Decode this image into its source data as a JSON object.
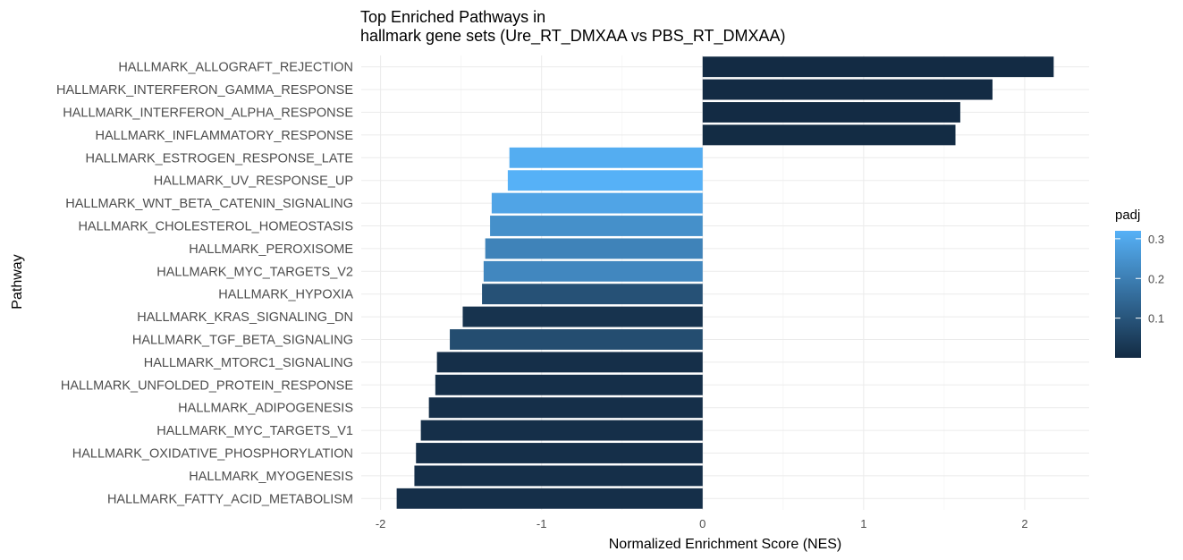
{
  "chart_data": {
    "type": "bar",
    "orientation": "horizontal",
    "title": "Top Enriched Pathways in",
    "subtitle": "hallmark gene sets (Ure_RT_DMXAA vs PBS_RT_DMXAA)",
    "xlabel": "Normalized Enrichment Score (NES)",
    "ylabel": "Pathway",
    "xlim": [
      -2.0,
      2.4
    ],
    "xticks": [
      -2,
      -1,
      0,
      1,
      2
    ],
    "grid": true,
    "categories": [
      "HALLMARK_ALLOGRAFT_REJECTION",
      "HALLMARK_INTERFERON_GAMMA_RESPONSE",
      "HALLMARK_INTERFERON_ALPHA_RESPONSE",
      "HALLMARK_INFLAMMATORY_RESPONSE",
      "HALLMARK_ESTROGEN_RESPONSE_LATE",
      "HALLMARK_UV_RESPONSE_UP",
      "HALLMARK_WNT_BETA_CATENIN_SIGNALING",
      "HALLMARK_CHOLESTEROL_HOMEOSTASIS",
      "HALLMARK_PEROXISOME",
      "HALLMARK_MYC_TARGETS_V2",
      "HALLMARK_HYPOXIA",
      "HALLMARK_KRAS_SIGNALING_DN",
      "HALLMARK_TGF_BETA_SIGNALING",
      "HALLMARK_MTORC1_SIGNALING",
      "HALLMARK_UNFOLDED_PROTEIN_RESPONSE",
      "HALLMARK_ADIPOGENESIS",
      "HALLMARK_MYC_TARGETS_V1",
      "HALLMARK_OXIDATIVE_PHOSPHORYLATION",
      "HALLMARK_MYOGENESIS",
      "HALLMARK_FATTY_ACID_METABOLISM"
    ],
    "values": [
      2.18,
      1.8,
      1.6,
      1.57,
      -1.2,
      -1.21,
      -1.31,
      -1.32,
      -1.35,
      -1.36,
      -1.37,
      -1.49,
      -1.57,
      -1.65,
      -1.66,
      -1.7,
      -1.75,
      -1.78,
      -1.79,
      -1.9
    ],
    "padj": [
      0.001,
      0.001,
      0.001,
      0.002,
      0.31,
      0.32,
      0.29,
      0.24,
      0.21,
      0.22,
      0.09,
      0.02,
      0.08,
      0.01,
      0.01,
      0.01,
      0.01,
      0.01,
      0.01,
      0.01
    ],
    "legend": {
      "title": "padj",
      "position": "right",
      "ticks": [
        "0.1",
        "0.2",
        "0.3"
      ],
      "tick_values": [
        0.1,
        0.2,
        0.3
      ],
      "range": [
        0.0,
        0.32
      ],
      "low_color": "#132B43",
      "high_color": "#56B1F7"
    }
  }
}
